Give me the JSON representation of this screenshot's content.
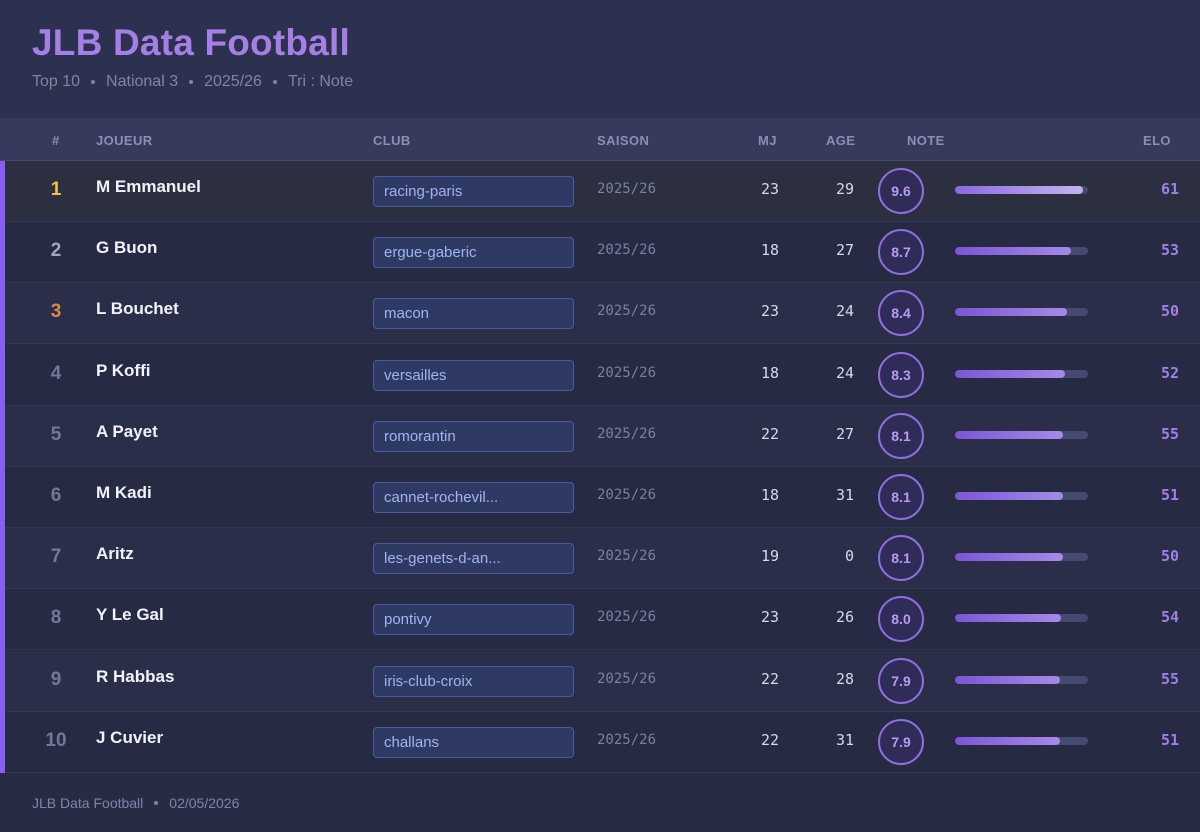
{
  "header": {
    "title": "JLB Data Football",
    "subtitle": [
      "Top 10",
      "National 3",
      "2025/26",
      "Tri : Note"
    ]
  },
  "columns": {
    "rank": "#",
    "player": "JOUEUR",
    "club": "CLUB",
    "season": "SAISON",
    "mj": "MJ",
    "age": "AGE",
    "note": "NOTE",
    "elo": "ELO"
  },
  "rows": [
    {
      "rank": "1",
      "player": "M Emmanuel",
      "club": "racing-paris",
      "season": "2025/26",
      "mj": "23",
      "age": "29",
      "note": "9.6",
      "elo": "61"
    },
    {
      "rank": "2",
      "player": "G Buon",
      "club": "ergue-gaberic",
      "season": "2025/26",
      "mj": "18",
      "age": "27",
      "note": "8.7",
      "elo": "53"
    },
    {
      "rank": "3",
      "player": "L Bouchet",
      "club": "macon",
      "season": "2025/26",
      "mj": "23",
      "age": "24",
      "note": "8.4",
      "elo": "50"
    },
    {
      "rank": "4",
      "player": "P Koffi",
      "club": "versailles",
      "season": "2025/26",
      "mj": "18",
      "age": "24",
      "note": "8.3",
      "elo": "52"
    },
    {
      "rank": "5",
      "player": "A Payet",
      "club": "romorantin",
      "season": "2025/26",
      "mj": "22",
      "age": "27",
      "note": "8.1",
      "elo": "55"
    },
    {
      "rank": "6",
      "player": "M Kadi",
      "club": "cannet-rochevil...",
      "season": "2025/26",
      "mj": "18",
      "age": "31",
      "note": "8.1",
      "elo": "51"
    },
    {
      "rank": "7",
      "player": "Aritz",
      "club": "les-genets-d-an...",
      "season": "2025/26",
      "mj": "19",
      "age": "0",
      "note": "8.1",
      "elo": "50"
    },
    {
      "rank": "8",
      "player": "Y Le Gal",
      "club": "pontivy",
      "season": "2025/26",
      "mj": "23",
      "age": "26",
      "note": "8.0",
      "elo": "54"
    },
    {
      "rank": "9",
      "player": "R Habbas",
      "club": "iris-club-croix",
      "season": "2025/26",
      "mj": "22",
      "age": "28",
      "note": "7.9",
      "elo": "55"
    },
    {
      "rank": "10",
      "player": "J Cuvier",
      "club": "challans",
      "season": "2025/26",
      "mj": "22",
      "age": "31",
      "note": "7.9",
      "elo": "51"
    }
  ],
  "footer": {
    "brand": "JLB Data Football",
    "date": "02/05/2026"
  },
  "colors": {
    "accent": "#a67fe6",
    "gold": "#f0c24a",
    "silver": "#a3a8c2",
    "bronze": "#d98b4e"
  }
}
